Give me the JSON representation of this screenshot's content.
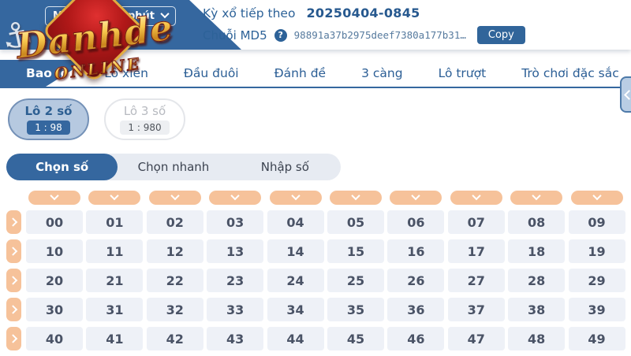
{
  "header": {
    "region_dropdown": {
      "visible_left": "Miề",
      "visible_right": "VIP 1 phút"
    },
    "next_draw": {
      "label": "Kỳ xổ tiếp theo",
      "value": "20250404-0845"
    },
    "md5": {
      "label": "Chuỗi MD5",
      "help_icon": "?",
      "value": "98891a37b2975deef7380a177b31…",
      "copy_label": "Copy"
    }
  },
  "logo": {
    "title": "Danhde",
    "subtitle": "ONLINE",
    "anchor_glyph": "⚓"
  },
  "nav": {
    "active_index": 0,
    "items": [
      "Bao lô",
      "Lô xiên",
      "Đầu đuôi",
      "Đánh đề",
      "3 càng",
      "Lô trượt",
      "Trò chơi đặc sắc"
    ]
  },
  "bet_types": [
    {
      "name": "Lô 2 số",
      "odds": "1 : 98",
      "active": true
    },
    {
      "name": "Lô 3 số",
      "odds": "1 : 980",
      "active": false
    }
  ],
  "pick_tabs": {
    "active_index": 0,
    "items": [
      "Chọn số",
      "Chọn nhanh",
      "Nhập số"
    ]
  },
  "grid": {
    "rows": [
      [
        "00",
        "01",
        "02",
        "03",
        "04",
        "05",
        "06",
        "07",
        "08",
        "09"
      ],
      [
        "10",
        "11",
        "12",
        "13",
        "14",
        "15",
        "16",
        "17",
        "18",
        "19"
      ],
      [
        "20",
        "21",
        "22",
        "23",
        "24",
        "25",
        "26",
        "27",
        "28",
        "29"
      ],
      [
        "30",
        "31",
        "32",
        "33",
        "34",
        "35",
        "36",
        "37",
        "38",
        "39"
      ],
      [
        "40",
        "41",
        "42",
        "43",
        "44",
        "45",
        "46",
        "47",
        "48",
        "49"
      ]
    ]
  },
  "colors": {
    "primary_blue": "#35679f",
    "nav_text_blue": "#2b5e95",
    "peach_orange": "#f6c29a",
    "cell_bg": "#eef1f7",
    "pill_active_bg": "#b6c9e0",
    "logo_red": "#b01818",
    "logo_gold": "#f8c84d"
  }
}
